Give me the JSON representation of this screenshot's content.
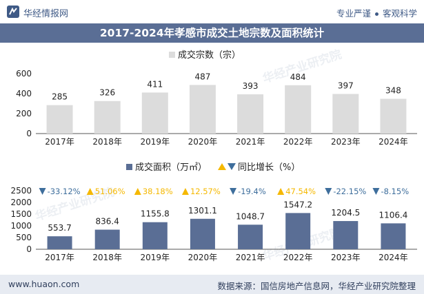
{
  "header": {
    "brand": "华经情报网",
    "tagline_left": "专业严谨",
    "tagline_right": "客观科学",
    "title": "2017-2024年孝感市成交土地宗数及面积统计"
  },
  "footer": {
    "url": "www.huaon.com",
    "source": "数据来源：国信房地产信息网，华经产业研究院整理"
  },
  "watermark": "华经产业研究院",
  "colors": {
    "brand": "#3f5a86",
    "title_bg": "#5a6e95",
    "count_bar": "#dcdcdc",
    "area_bar": "#5a6e95",
    "up": "#f5b800",
    "down": "#3e6e9c",
    "footer_bg": "#e7ebf2"
  },
  "chart_data": [
    {
      "type": "bar",
      "legend": "成交宗数（宗）",
      "categories": [
        "2017年",
        "2018年",
        "2019年",
        "2020年",
        "2021年",
        "2022年",
        "2023年",
        "2024年"
      ],
      "series": [
        {
          "name": "成交宗数（宗）",
          "values": [
            285,
            326,
            411,
            487,
            393,
            484,
            397,
            348
          ]
        }
      ],
      "ylim": [
        0,
        600
      ],
      "yticks": [
        0,
        200,
        400,
        600
      ],
      "legend_position": "top-center"
    },
    {
      "type": "bar",
      "legend": "成交面积（万㎡）",
      "legend2": "同比增长（%）",
      "categories": [
        "2017年",
        "2018年",
        "2019年",
        "2020年",
        "2021年",
        "2022年",
        "2023年",
        "2024年"
      ],
      "series": [
        {
          "name": "成交面积（万㎡）",
          "values": [
            553.7,
            836.4,
            1155.8,
            1301.1,
            1048.7,
            1547.2,
            1204.5,
            1106.4
          ]
        },
        {
          "name": "同比增长（%）",
          "values": [
            -33.12,
            51.06,
            38.18,
            12.57,
            -19.4,
            47.54,
            -22.15,
            -8.15
          ]
        }
      ],
      "growth_labels": [
        "-33.12%",
        "51.06%",
        "38.18%",
        "12.57%",
        "-19.4%",
        "47.54%",
        "-22.15%",
        "-8.15%"
      ],
      "value_labels": [
        "553.7",
        "836.4",
        "1155.8",
        "1301.1",
        "1048.7",
        "1547.2",
        "1204.5",
        "1106.4"
      ],
      "ylim": [
        0,
        2500
      ],
      "yticks": [
        0,
        500,
        1000,
        1500,
        2000,
        2500
      ],
      "legend_position": "top-center"
    }
  ]
}
